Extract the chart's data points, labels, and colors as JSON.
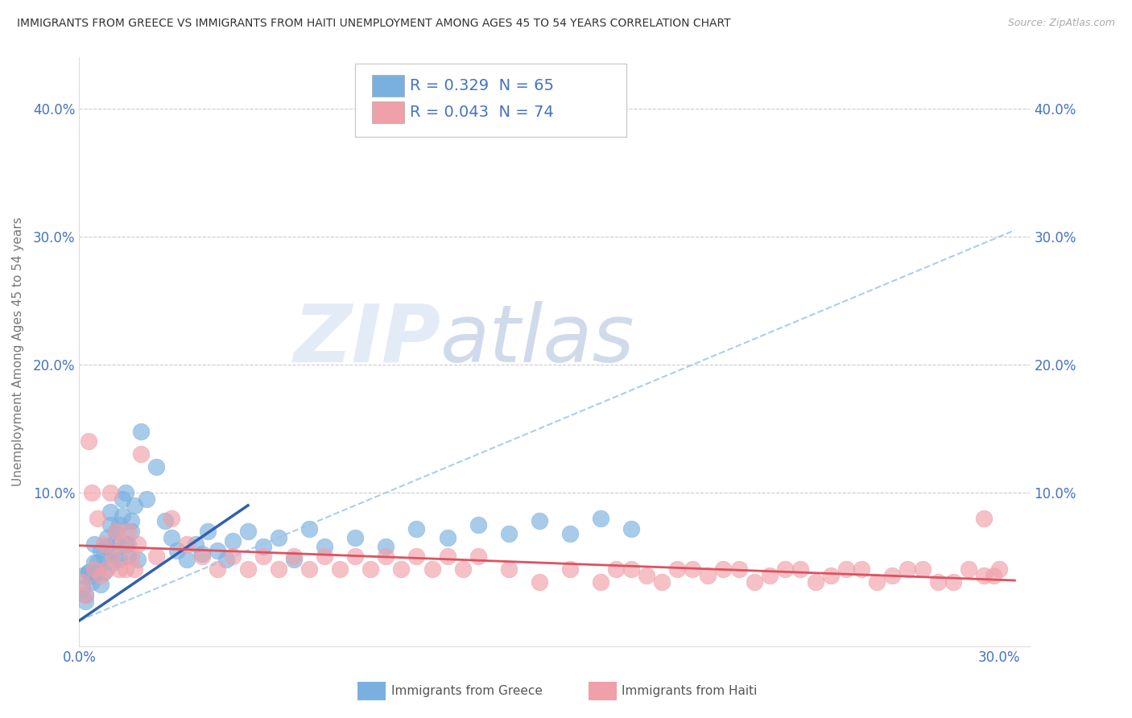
{
  "title": "IMMIGRANTS FROM GREECE VS IMMIGRANTS FROM HAITI UNEMPLOYMENT AMONG AGES 45 TO 54 YEARS CORRELATION CHART",
  "source": "Source: ZipAtlas.com",
  "ylabel": "Unemployment Among Ages 45 to 54 years",
  "xlim": [
    0.0,
    0.31
  ],
  "ylim": [
    -0.02,
    0.44
  ],
  "xticks": [
    0.0,
    0.3
  ],
  "yticks": [
    0.1,
    0.2,
    0.3,
    0.4
  ],
  "xtick_labels": [
    "0.0%",
    "30.0%"
  ],
  "ytick_labels": [
    "10.0%",
    "20.0%",
    "30.0%",
    "40.0%"
  ],
  "tick_color": "#4472c4",
  "greece_R": 0.329,
  "greece_N": 65,
  "haiti_R": 0.043,
  "haiti_N": 74,
  "greece_color": "#7ab0e0",
  "haiti_color": "#f0a0a8",
  "greece_solid_line_color": "#3060b0",
  "greece_dashed_line_color": "#a0c4e8",
  "haiti_line_color": "#e05060",
  "watermark_zip": "ZIP",
  "watermark_atlas": "atlas",
  "watermark_zip_color": "#c8d8f0",
  "watermark_atlas_color": "#a0b8d8",
  "legend_labels": [
    "Immigrants from Greece",
    "Immigrants from Haiti"
  ],
  "greece_scatter_x": [
    0.001,
    0.002,
    0.001,
    0.003,
    0.002,
    0.004,
    0.003,
    0.005,
    0.004,
    0.006,
    0.005,
    0.007,
    0.006,
    0.008,
    0.007,
    0.009,
    0.008,
    0.01,
    0.009,
    0.011,
    0.01,
    0.012,
    0.011,
    0.013,
    0.012,
    0.014,
    0.013,
    0.015,
    0.014,
    0.016,
    0.015,
    0.017,
    0.016,
    0.018,
    0.017,
    0.019,
    0.02,
    0.022,
    0.025,
    0.028,
    0.03,
    0.032,
    0.035,
    0.038,
    0.04,
    0.042,
    0.045,
    0.048,
    0.05,
    0.055,
    0.06,
    0.065,
    0.07,
    0.075,
    0.08,
    0.09,
    0.1,
    0.11,
    0.12,
    0.13,
    0.14,
    0.15,
    0.16,
    0.17,
    0.18
  ],
  "greece_scatter_y": [
    0.035,
    0.015,
    0.025,
    0.038,
    0.02,
    0.03,
    0.038,
    0.045,
    0.035,
    0.04,
    0.06,
    0.055,
    0.045,
    0.038,
    0.028,
    0.065,
    0.05,
    0.075,
    0.058,
    0.045,
    0.085,
    0.07,
    0.055,
    0.048,
    0.062,
    0.095,
    0.075,
    0.06,
    0.082,
    0.05,
    0.1,
    0.078,
    0.06,
    0.09,
    0.07,
    0.048,
    0.148,
    0.095,
    0.12,
    0.078,
    0.065,
    0.055,
    0.048,
    0.06,
    0.052,
    0.07,
    0.055,
    0.048,
    0.062,
    0.07,
    0.058,
    0.065,
    0.048,
    0.072,
    0.058,
    0.065,
    0.058,
    0.072,
    0.065,
    0.075,
    0.068,
    0.078,
    0.068,
    0.08,
    0.072
  ],
  "haiti_scatter_x": [
    0.001,
    0.002,
    0.003,
    0.004,
    0.005,
    0.006,
    0.007,
    0.008,
    0.009,
    0.01,
    0.011,
    0.012,
    0.013,
    0.014,
    0.015,
    0.016,
    0.017,
    0.018,
    0.019,
    0.02,
    0.025,
    0.03,
    0.035,
    0.04,
    0.045,
    0.05,
    0.055,
    0.06,
    0.065,
    0.07,
    0.075,
    0.08,
    0.085,
    0.09,
    0.095,
    0.1,
    0.105,
    0.11,
    0.115,
    0.12,
    0.125,
    0.13,
    0.14,
    0.15,
    0.16,
    0.17,
    0.18,
    0.19,
    0.2,
    0.21,
    0.22,
    0.23,
    0.24,
    0.25,
    0.26,
    0.27,
    0.28,
    0.29,
    0.295,
    0.298,
    0.3,
    0.295,
    0.285,
    0.275,
    0.265,
    0.255,
    0.245,
    0.235,
    0.225,
    0.215,
    0.205,
    0.195,
    0.185,
    0.175
  ],
  "haiti_scatter_y": [
    0.03,
    0.02,
    0.14,
    0.1,
    0.04,
    0.08,
    0.035,
    0.06,
    0.04,
    0.1,
    0.05,
    0.07,
    0.04,
    0.06,
    0.04,
    0.07,
    0.05,
    0.04,
    0.06,
    0.13,
    0.05,
    0.08,
    0.06,
    0.05,
    0.04,
    0.05,
    0.04,
    0.05,
    0.04,
    0.05,
    0.04,
    0.05,
    0.04,
    0.05,
    0.04,
    0.05,
    0.04,
    0.05,
    0.04,
    0.05,
    0.04,
    0.05,
    0.04,
    0.03,
    0.04,
    0.03,
    0.04,
    0.03,
    0.04,
    0.04,
    0.03,
    0.04,
    0.03,
    0.04,
    0.03,
    0.04,
    0.03,
    0.04,
    0.08,
    0.035,
    0.04,
    0.035,
    0.03,
    0.04,
    0.035,
    0.04,
    0.035,
    0.04,
    0.035,
    0.04,
    0.035,
    0.04,
    0.035,
    0.04
  ]
}
